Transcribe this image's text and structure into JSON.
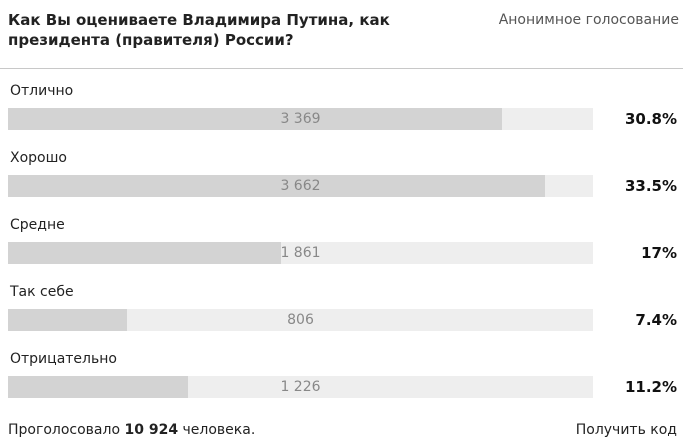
{
  "poll": {
    "question": "Как Вы оцениваете Владимира Путина, как президента (правителя) России?",
    "mode": "Анонимное голосование",
    "options": [
      {
        "label": "Отлично",
        "count": "3 369",
        "percent": "30.8%",
        "share": 0.308
      },
      {
        "label": "Хорошо",
        "count": "3 662",
        "percent": "33.5%",
        "share": 0.335
      },
      {
        "label": "Средне",
        "count": "1 861",
        "percent": "17%",
        "share": 0.17
      },
      {
        "label": "Так себе",
        "count": "806",
        "percent": "7.4%",
        "share": 0.074
      },
      {
        "label": "Отрицательно",
        "count": "1 226",
        "percent": "11.2%",
        "share": 0.112
      }
    ],
    "footer": {
      "voted_prefix": "Проголосовало",
      "voted_total": "10 924",
      "voted_suffix": "человека.",
      "get_code": "Получить код"
    }
  }
}
